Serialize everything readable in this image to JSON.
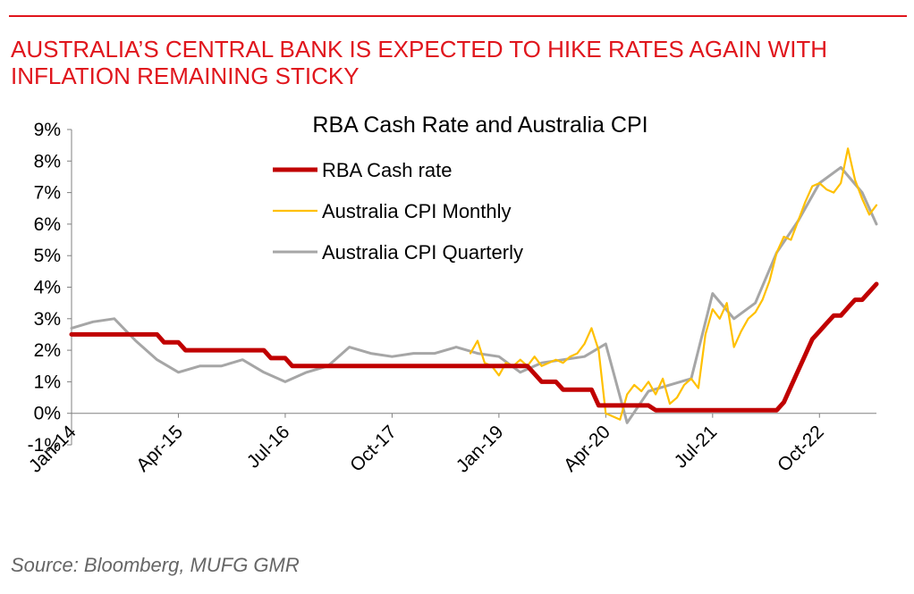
{
  "headline": "AUSTRALIA’S CENTRAL BANK IS EXPECTED TO HIKE RATES AGAIN WITH INFLATION REMAINING STICKY",
  "source": "Source: Bloomberg, MUFG GMR",
  "colors": {
    "accent": "#e0151c",
    "cash_rate": "#c00000",
    "cpi_monthly": "#ffc000",
    "cpi_quarterly": "#a6a6a6"
  },
  "chart_data": {
    "type": "line",
    "title": "RBA Cash Rate and Australia CPI",
    "xlabel": "",
    "ylabel": "",
    "y_unit": "%",
    "ylim": [
      -1,
      9
    ],
    "yticks": [
      -1,
      0,
      1,
      2,
      3,
      4,
      5,
      6,
      7,
      8,
      9
    ],
    "ytick_labels": [
      "-1%",
      "0%",
      "1%",
      "2%",
      "3%",
      "4%",
      "5%",
      "6%",
      "7%",
      "8%",
      "9%"
    ],
    "xlim": [
      "2014-01",
      "2023-06"
    ],
    "xticks": [
      "2014-01",
      "2015-04",
      "2016-07",
      "2017-10",
      "2019-01",
      "2020-04",
      "2021-07",
      "2022-10"
    ],
    "xtick_labels": [
      "Jan-14",
      "Apr-15",
      "Jul-16",
      "Oct-17",
      "Jan-19",
      "Apr-20",
      "Jul-21",
      "Oct-22"
    ],
    "legend_position": "top-left",
    "grid": false,
    "series": [
      {
        "name": "RBA Cash rate",
        "color": "#c00000",
        "x": [
          "2014-01",
          "2015-01",
          "2015-02",
          "2015-04",
          "2015-05",
          "2016-04",
          "2016-05",
          "2016-07",
          "2016-08",
          "2019-05",
          "2019-06",
          "2019-07",
          "2019-09",
          "2019-10",
          "2020-02",
          "2020-03",
          "2020-10",
          "2020-11",
          "2022-04",
          "2022-05",
          "2022-06",
          "2022-07",
          "2022-08",
          "2022-09",
          "2022-10",
          "2022-11",
          "2022-12",
          "2023-01",
          "2023-02",
          "2023-03",
          "2023-04",
          "2023-05",
          "2023-06"
        ],
        "values": [
          2.5,
          2.5,
          2.25,
          2.25,
          2.0,
          2.0,
          1.75,
          1.75,
          1.5,
          1.5,
          1.25,
          1.0,
          1.0,
          0.75,
          0.75,
          0.25,
          0.25,
          0.1,
          0.1,
          0.35,
          0.85,
          1.35,
          1.85,
          2.35,
          2.6,
          2.85,
          3.1,
          3.1,
          3.35,
          3.6,
          3.6,
          3.85,
          4.1
        ]
      },
      {
        "name": "Australia CPI Monthly",
        "color": "#ffc000",
        "x": [
          "2018-09",
          "2018-10",
          "2018-11",
          "2018-12",
          "2019-01",
          "2019-02",
          "2019-03",
          "2019-04",
          "2019-05",
          "2019-06",
          "2019-07",
          "2019-08",
          "2019-09",
          "2019-10",
          "2019-11",
          "2019-12",
          "2020-01",
          "2020-02",
          "2020-03",
          "2020-04",
          "2020-05",
          "2020-06",
          "2020-07",
          "2020-08",
          "2020-09",
          "2020-10",
          "2020-11",
          "2020-12",
          "2021-01",
          "2021-02",
          "2021-03",
          "2021-04",
          "2021-05",
          "2021-06",
          "2021-07",
          "2021-08",
          "2021-09",
          "2021-10",
          "2021-11",
          "2021-12",
          "2022-01",
          "2022-02",
          "2022-03",
          "2022-04",
          "2022-05",
          "2022-06",
          "2022-07",
          "2022-08",
          "2022-09",
          "2022-10",
          "2022-11",
          "2022-12",
          "2023-01",
          "2023-02",
          "2023-03",
          "2023-04",
          "2023-05",
          "2023-06"
        ],
        "values": [
          1.9,
          2.3,
          1.6,
          1.5,
          1.2,
          1.6,
          1.5,
          1.7,
          1.5,
          1.8,
          1.5,
          1.6,
          1.7,
          1.6,
          1.8,
          1.9,
          2.2,
          2.7,
          2.0,
          0.0,
          -0.1,
          -0.2,
          0.6,
          0.9,
          0.7,
          1.0,
          0.6,
          1.1,
          0.3,
          0.5,
          0.9,
          1.1,
          0.8,
          2.5,
          3.3,
          3.0,
          3.5,
          2.1,
          2.6,
          3.0,
          3.2,
          3.6,
          4.2,
          5.1,
          5.6,
          5.5,
          6.1,
          6.7,
          7.2,
          7.3,
          7.1,
          7.0,
          7.3,
          8.4,
          7.4,
          6.8,
          6.3,
          6.6
        ]
      },
      {
        "name": "Australia CPI Quarterly",
        "color": "#a6a6a6",
        "x": [
          "2014-01",
          "2014-04",
          "2014-07",
          "2014-10",
          "2015-01",
          "2015-04",
          "2015-07",
          "2015-10",
          "2016-01",
          "2016-04",
          "2016-07",
          "2016-10",
          "2017-01",
          "2017-04",
          "2017-07",
          "2017-10",
          "2018-01",
          "2018-04",
          "2018-07",
          "2018-10",
          "2019-01",
          "2019-04",
          "2019-07",
          "2019-10",
          "2020-01",
          "2020-04",
          "2020-07",
          "2020-10",
          "2021-01",
          "2021-04",
          "2021-07",
          "2021-10",
          "2022-01",
          "2022-04",
          "2022-07",
          "2022-10",
          "2023-01",
          "2023-04",
          "2023-06"
        ],
        "values": [
          2.7,
          2.9,
          3.0,
          2.3,
          1.7,
          1.3,
          1.5,
          1.5,
          1.7,
          1.3,
          1.0,
          1.3,
          1.5,
          2.1,
          1.9,
          1.8,
          1.9,
          1.9,
          2.1,
          1.9,
          1.8,
          1.3,
          1.6,
          1.7,
          1.8,
          2.2,
          -0.3,
          0.7,
          0.9,
          1.1,
          3.8,
          3.0,
          3.5,
          5.1,
          6.1,
          7.3,
          7.8,
          7.0,
          6.0
        ]
      }
    ]
  }
}
